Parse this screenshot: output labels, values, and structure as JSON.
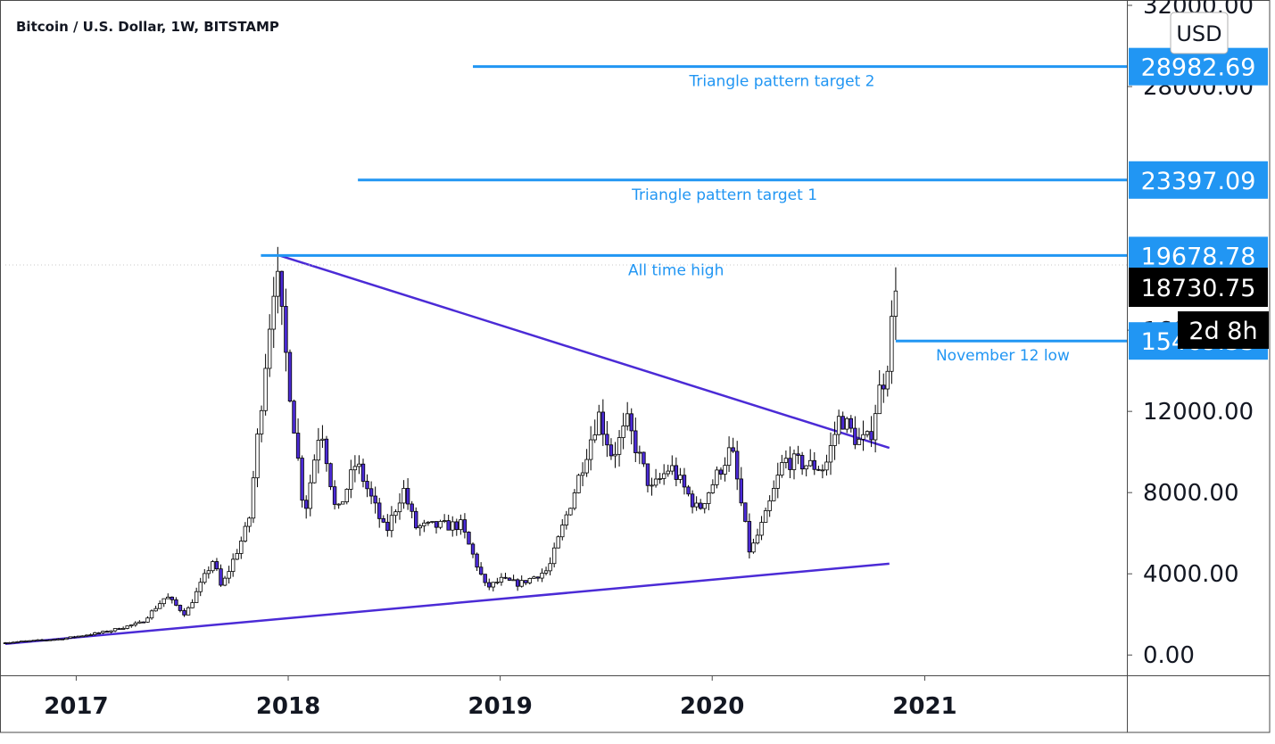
{
  "chart_data": {
    "type": "candlestick",
    "title": "Bitcoin / U.S. Dollar, 1W, BITSTAMP",
    "currency": "USD",
    "countdown": "2d 8h",
    "colors": {
      "up_candle": "#ffffff",
      "down_candle": "#4b2bd6",
      "wick": "#000000",
      "trendline": "#4b2bd6",
      "level_line": "#2196f3",
      "level_label_bg": "#2196f3",
      "current_price_bg": "#000000"
    },
    "y_axis": {
      "range": [
        -1000,
        32000
      ],
      "ticks": [
        0,
        4000,
        8000,
        12000,
        16000,
        28000,
        32000
      ],
      "tick_labels": [
        "0.00",
        "4000.00",
        "8000.00",
        "12000.00",
        "16000.00",
        "28000.00",
        "32000.00"
      ]
    },
    "x_axis": {
      "range": [
        "2016-09-01",
        "2021-12-15"
      ],
      "ticks": [
        "2017-01-01",
        "2018-01-01",
        "2019-01-01",
        "2020-01-01",
        "2021-01-01"
      ],
      "tick_labels": [
        "2017",
        "2018",
        "2019",
        "2020",
        "2021"
      ]
    },
    "levels": [
      {
        "value": 28982.69,
        "label": "28982.69",
        "annotation": "Triangle pattern target 2",
        "start": "2018-11-15"
      },
      {
        "value": 23397.09,
        "label": "23397.09",
        "annotation": "Triangle pattern target 1",
        "start": "2018-05-01"
      },
      {
        "value": 19678.78,
        "label": "19678.78",
        "annotation": "All time high",
        "start": "2017-11-15"
      },
      {
        "value": 15469.35,
        "label": "15469.35",
        "annotation": "November 12 low",
        "start": "2020-11-12"
      }
    ],
    "current_price": {
      "value": 18730.75,
      "label": "18730.75"
    },
    "trendlines": [
      {
        "name": "upper",
        "from": {
          "x": "2017-12-17",
          "y": 19678
        },
        "to": {
          "x": "2020-11-01",
          "y": 10200
        }
      },
      {
        "name": "lower",
        "from": {
          "x": "2016-09-01",
          "y": 550
        },
        "to": {
          "x": "2020-11-01",
          "y": 4500
        }
      }
    ],
    "anchors": [
      [
        "2016-09-01",
        600
      ],
      [
        "2016-12-15",
        800
      ],
      [
        "2017-03-01",
        1150
      ],
      [
        "2017-05-01",
        1600
      ],
      [
        "2017-06-12",
        2900
      ],
      [
        "2017-07-15",
        2000
      ],
      [
        "2017-09-01",
        4700
      ],
      [
        "2017-09-15",
        3300
      ],
      [
        "2017-11-01",
        6500
      ],
      [
        "2017-12-17",
        19200
      ],
      [
        "2018-02-05",
        6900
      ],
      [
        "2018-03-05",
        11500
      ],
      [
        "2018-04-01",
        6800
      ],
      [
        "2018-05-05",
        9500
      ],
      [
        "2018-06-25",
        6000
      ],
      [
        "2018-07-25",
        8200
      ],
      [
        "2018-08-15",
        6300
      ],
      [
        "2018-11-01",
        6400
      ],
      [
        "2018-12-15",
        3300
      ],
      [
        "2019-01-10",
        3700
      ],
      [
        "2019-02-10",
        3500
      ],
      [
        "2019-04-01",
        4200
      ],
      [
        "2019-05-15",
        8000
      ],
      [
        "2019-06-26",
        11900
      ],
      [
        "2019-07-20",
        9800
      ],
      [
        "2019-08-15",
        11400
      ],
      [
        "2019-09-25",
        8100
      ],
      [
        "2019-10-28",
        9300
      ],
      [
        "2019-12-15",
        7100
      ],
      [
        "2020-02-10",
        10200
      ],
      [
        "2020-03-13",
        5000
      ],
      [
        "2020-04-10",
        6900
      ],
      [
        "2020-05-10",
        9600
      ],
      [
        "2020-07-20",
        9200
      ],
      [
        "2020-08-15",
        11800
      ],
      [
        "2020-09-15",
        10500
      ],
      [
        "2020-10-05",
        10600
      ],
      [
        "2020-10-20",
        12900
      ],
      [
        "2020-11-01",
        13800
      ],
      [
        "2020-11-10",
        15400
      ],
      [
        "2020-11-17",
        18500
      ]
    ]
  }
}
